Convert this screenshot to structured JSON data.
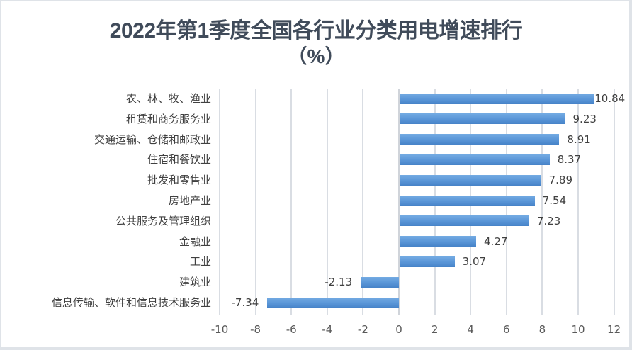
{
  "chart_data": {
    "type": "bar",
    "orientation": "horizontal",
    "title": "2022年第1季度全国各行业分类用电增速排行",
    "subtitle": "（%）",
    "xlabel": "",
    "ylabel": "",
    "xlim": [
      -10,
      12
    ],
    "x_ticks": [
      -10,
      -8,
      -6,
      -4,
      -2,
      0,
      2,
      4,
      6,
      8,
      10,
      12
    ],
    "grid": true,
    "legend": null,
    "bar_color": "#5b97d8",
    "categories": [
      "农、林、牧、渔业",
      "租赁和商务服务业",
      "交通运输、仓储和邮政业",
      "住宿和餐饮业",
      "批发和零售业",
      "房地产业",
      "公共服务及管理组织",
      "金融业",
      "工业",
      "建筑业",
      "信息传输、软件和信息技术服务业"
    ],
    "values": [
      10.84,
      9.23,
      8.91,
      8.37,
      7.89,
      7.54,
      7.23,
      4.27,
      3.07,
      -2.13,
      -7.34
    ],
    "data_labels": [
      "10.84",
      "9.23",
      "8.91",
      "8.37",
      "7.89",
      "7.54",
      "7.23",
      "4.27",
      "3.07",
      "-2.13",
      "-7.34"
    ]
  },
  "title": {
    "line1": "2022年第1季度全国各行业分类用电增速排行",
    "line2": "（%）"
  },
  "tick_labels": [
    "-10",
    "-8",
    "-6",
    "-4",
    "-2",
    "0",
    "2",
    "4",
    "6",
    "8",
    "10",
    "12"
  ]
}
